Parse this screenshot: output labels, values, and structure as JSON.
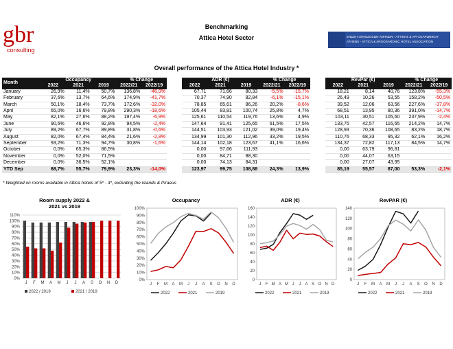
{
  "header": {
    "logo": "gbr",
    "logo_sub": "consulting",
    "title": "Benchmarking",
    "subtitle": "Attica Hotel Sector",
    "association_gr": "ΕΝΩΣΗ ΞΕΝΟΔΟΧΩΝ ΑΘΗΝΩΝ - ΑΤΤΙΚΗΣ & ΑΡΓΟΣΑΡΩΝΙΚΟΥ",
    "association_en": "ATHENS - ATTICA & ARGOSARONIC HOTEL ASSOCIATION"
  },
  "heading": "Overall performance of the Attica Hotel Industry *",
  "row_header": "Month",
  "months": [
    "January",
    "February",
    "March",
    "April",
    "May",
    "June",
    "July",
    "August",
    "September",
    "October",
    "November",
    "December",
    "YTD Sep"
  ],
  "tables": [
    {
      "group": "Occupancy",
      "change": "% Change",
      "columns": [
        "2022",
        "2021",
        "2019",
        "2022/21",
        "2022/19"
      ],
      "rows": [
        [
          "26,9%",
          "11,4%",
          "50,7%",
          "136,8%",
          "-46,9%"
        ],
        [
          "37,6%",
          "13,7%",
          "64,6%",
          "174,9%",
          "-41,7%"
        ],
        [
          "50,1%",
          "18,4%",
          "73,7%",
          "172,6%",
          "-32,0%"
        ],
        [
          "65,0%",
          "16,6%",
          "79,8%",
          "290,3%",
          "-18,6%"
        ],
        [
          "82,1%",
          "27,6%",
          "88,2%",
          "197,4%",
          "-6,9%"
        ],
        [
          "90,6%",
          "46,6%",
          "92,8%",
          "94,5%",
          "-2,4%"
        ],
        [
          "89,2%",
          "67,7%",
          "89,8%",
          "31,8%",
          "-0,6%"
        ],
        [
          "82,0%",
          "67,4%",
          "84,4%",
          "21,6%",
          "-2,8%"
        ],
        [
          "93,2%",
          "71,3%",
          "94,7%",
          "30,8%",
          "-1,6%"
        ],
        [
          "0,0%",
          "65,3%",
          "86,5%"
        ],
        [
          "0,0%",
          "52,0%",
          "71,5%"
        ],
        [
          "0,0%",
          "36,5%",
          "52,1%"
        ],
        [
          "68,7%",
          "55,7%",
          "79,9%",
          "23,3%",
          "-14,0%"
        ]
      ]
    },
    {
      "group": "ADR (€)",
      "change": "% Change",
      "columns": [
        "2022",
        "2021",
        "2019",
        "2022/21",
        "2022/19"
      ],
      "rows": [
        [
          "67,71",
          "71,66",
          "80,33",
          "-5,5%",
          "-15,7%"
        ],
        [
          "70,37",
          "74,90",
          "82,84",
          "-6,1%",
          "-15,1%"
        ],
        [
          "78,85",
          "65,61",
          "86,26",
          "20,2%",
          "-8,6%"
        ],
        [
          "105,44",
          "83,81",
          "100,74",
          "25,8%",
          "4,7%"
        ],
        [
          "125,61",
          "110,54",
          "119,76",
          "13,6%",
          "4,9%"
        ],
        [
          "147,64",
          "91,41",
          "125,65",
          "61,5%",
          "17,5%"
        ],
        [
          "144,51",
          "103,93",
          "121,02",
          "39,0%",
          "19,4%"
        ],
        [
          "134,99",
          "101,30",
          "112,96",
          "33,2%",
          "19,5%"
        ],
        [
          "144,14",
          "102,18",
          "123,67",
          "41,1%",
          "16,6%"
        ],
        [
          "0,00",
          "97,66",
          "111,93"
        ],
        [
          "0,00",
          "84,71",
          "88,30"
        ],
        [
          "0,00",
          "74,13",
          "84,31"
        ],
        [
          "123,97",
          "99,75",
          "108,88",
          "24,3%",
          "13,9%"
        ]
      ]
    },
    {
      "group": "RevPar (€)",
      "change": "% Change",
      "columns": [
        "2022",
        "2021",
        "2019",
        "2022/21",
        "2022/19"
      ],
      "rows": [
        [
          "18,21",
          "8,14",
          "40,76",
          "123,8%",
          "-55,3%"
        ],
        [
          "26,49",
          "10,26",
          "53,55",
          "158,2%",
          "-50,5%"
        ],
        [
          "39,52",
          "12,06",
          "63,56",
          "227,6%",
          "-37,8%"
        ],
        [
          "68,51",
          "13,95",
          "80,36",
          "391,0%",
          "-14,7%"
        ],
        [
          "103,11",
          "30,51",
          "105,60",
          "237,9%",
          "-2,4%"
        ],
        [
          "133,75",
          "42,57",
          "116,65",
          "214,2%",
          "14,7%"
        ],
        [
          "128,93",
          "70,36",
          "108,65",
          "83,2%",
          "18,7%"
        ],
        [
          "110,76",
          "68,33",
          "95,32",
          "62,1%",
          "16,2%"
        ],
        [
          "134,37",
          "72,82",
          "117,13",
          "84,5%",
          "14,7%"
        ],
        [
          "0,00",
          "63,79",
          "96,81"
        ],
        [
          "0,00",
          "44,07",
          "63,15"
        ],
        [
          "0,00",
          "27,07",
          "43,95"
        ],
        [
          "85,19",
          "55,57",
          "87,00",
          "53,3%",
          "-2,1%"
        ]
      ]
    }
  ],
  "footnote": "* Weighted on rooms available in Attica hotels of 5* - 3*, excluding the islands & Piraeus",
  "chart_data": [
    {
      "type": "bar",
      "title": "Room supply 2022 & 2021 vs 2019",
      "categories": [
        "J",
        "F",
        "M",
        "A",
        "M",
        "J",
        "J",
        "A",
        "S",
        "O",
        "N",
        "D"
      ],
      "series": [
        {
          "name": "2022 / 2019",
          "color": "#404040",
          "values": [
            100,
            97,
            97,
            97,
            98,
            98,
            98,
            98,
            98,
            null,
            null,
            null
          ]
        },
        {
          "name": "2021 / 2019",
          "color": "#c00000",
          "values": [
            55,
            52,
            52,
            48,
            62,
            88,
            95,
            97,
            98,
            100,
            100,
            100
          ]
        }
      ],
      "ylim": [
        0,
        110
      ],
      "yticks": [
        {
          "value": 0,
          "label": "0%"
        },
        {
          "value": 10,
          "label": "10%"
        },
        {
          "value": 20,
          "label": "20%"
        },
        {
          "value": 30,
          "label": "30%"
        },
        {
          "value": 40,
          "label": "40%"
        },
        {
          "value": 50,
          "label": "50%"
        },
        {
          "value": 60,
          "label": "60%"
        },
        {
          "value": 70,
          "label": "70%"
        },
        {
          "value": 80,
          "label": "80%"
        },
        {
          "value": 90,
          "label": "90%"
        },
        {
          "value": 100,
          "label": "100%"
        },
        {
          "value": 110,
          "label": "110%"
        }
      ],
      "grid": true
    },
    {
      "type": "line",
      "title": "Occupancy",
      "categories": [
        "J",
        "F",
        "M",
        "A",
        "M",
        "J",
        "J",
        "A",
        "S",
        "O",
        "N",
        "D"
      ],
      "series": [
        {
          "name": "2022",
          "color": "#1a1a1a",
          "values": [
            26.9,
            37.6,
            50.1,
            65.0,
            82.1,
            90.6,
            89.2,
            82.0,
            93.2,
            null,
            null,
            null
          ]
        },
        {
          "name": "2021",
          "color": "#c00000",
          "values": [
            11.4,
            13.7,
            18.4,
            16.6,
            27.6,
            46.6,
            67.7,
            67.4,
            71.3,
            65.3,
            52.0,
            36.5
          ]
        },
        {
          "name": "2019",
          "color": "#a6a6a6",
          "values": [
            50.7,
            64.6,
            73.7,
            79.8,
            88.2,
            92.8,
            89.8,
            84.4,
            94.7,
            86.5,
            71.5,
            52.1
          ]
        }
      ],
      "ylim": [
        0,
        100
      ],
      "yticks": [
        {
          "value": 0,
          "label": "0%"
        },
        {
          "value": 10,
          "label": "10%"
        },
        {
          "value": 20,
          "label": "20%"
        },
        {
          "value": 30,
          "label": "30%"
        },
        {
          "value": 40,
          "label": "40%"
        },
        {
          "value": 50,
          "label": "50%"
        },
        {
          "value": 60,
          "label": "60%"
        },
        {
          "value": 70,
          "label": "70%"
        },
        {
          "value": 80,
          "label": "80%"
        },
        {
          "value": 90,
          "label": "90%"
        },
        {
          "value": 100,
          "label": "100%"
        }
      ],
      "grid": false
    },
    {
      "type": "line",
      "title": "ADR (€)",
      "categories": [
        "J",
        "F",
        "M",
        "A",
        "M",
        "J",
        "J",
        "A",
        "S",
        "O",
        "N",
        "D"
      ],
      "series": [
        {
          "name": "2022",
          "color": "#1a1a1a",
          "values": [
            67.71,
            70.37,
            78.85,
            105.44,
            125.61,
            147.64,
            144.51,
            134.99,
            144.14,
            null,
            null,
            null
          ]
        },
        {
          "name": "2021",
          "color": "#c00000",
          "values": [
            71.66,
            74.9,
            65.61,
            83.81,
            110.54,
            91.41,
            103.93,
            101.3,
            102.18,
            97.66,
            84.71,
            74.13
          ]
        },
        {
          "name": "2019",
          "color": "#a6a6a6",
          "values": [
            80.33,
            82.84,
            86.26,
            100.74,
            119.76,
            125.65,
            121.02,
            112.96,
            123.67,
            111.93,
            88.3,
            84.31
          ]
        }
      ],
      "ylim": [
        0,
        160
      ],
      "yticks": [
        0,
        20,
        40,
        60,
        80,
        100,
        120,
        140,
        160
      ],
      "grid": false
    },
    {
      "type": "line",
      "title": "RevPAR (€)",
      "categories": [
        "J",
        "F",
        "M",
        "A",
        "M",
        "J",
        "J",
        "A",
        "S",
        "O",
        "N",
        "D"
      ],
      "series": [
        {
          "name": "2022",
          "color": "#1a1a1a",
          "values": [
            18.21,
            26.49,
            39.52,
            68.51,
            103.11,
            133.75,
            128.93,
            110.76,
            134.37,
            null,
            null,
            null
          ]
        },
        {
          "name": "2021",
          "color": "#c00000",
          "values": [
            8.14,
            10.26,
            12.06,
            13.95,
            30.51,
            42.57,
            70.36,
            68.33,
            72.82,
            63.79,
            44.07,
            27.07
          ]
        },
        {
          "name": "2019",
          "color": "#a6a6a6",
          "values": [
            40.76,
            53.55,
            63.56,
            80.36,
            105.6,
            116.65,
            108.65,
            95.32,
            117.13,
            96.81,
            63.15,
            43.95
          ]
        }
      ],
      "ylim": [
        0,
        140
      ],
      "yticks": [
        0,
        20,
        40,
        60,
        80,
        100,
        120,
        140
      ],
      "grid": false
    }
  ]
}
